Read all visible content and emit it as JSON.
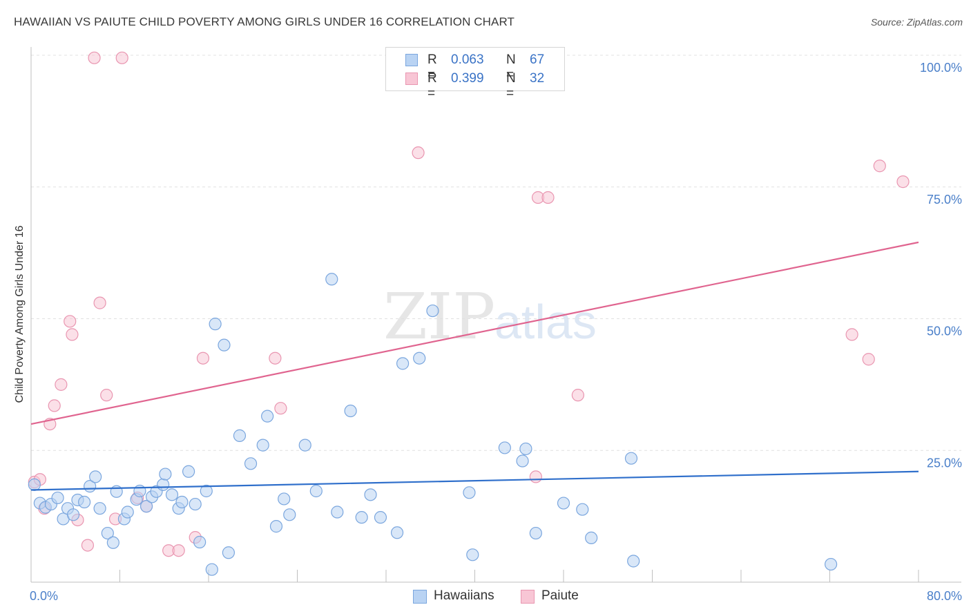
{
  "title": "HAWAIIAN VS PAIUTE CHILD POVERTY AMONG GIRLS UNDER 16 CORRELATION CHART",
  "source": "Source: ZipAtlas.com",
  "watermark": {
    "zip": "ZIP",
    "atlas": "atlas"
  },
  "colors": {
    "hawaiians_fill": "#b9d3f3",
    "hawaiians_stroke": "#7aa6de",
    "hawaiians_line": "#2f6fcb",
    "paiute_fill": "#f8c6d5",
    "paiute_stroke": "#e995b0",
    "paiute_line": "#e0648f",
    "tick_text": "#4a7fc9"
  },
  "legend": {
    "rows": [
      {
        "r_label": "R =",
        "r_value": "0.063",
        "n_label": "N =",
        "n_value": "67"
      },
      {
        "r_label": "R =",
        "r_value": "0.399",
        "n_label": "N =",
        "n_value": "32"
      }
    ]
  },
  "bottom_legend": {
    "hawaiians": "Hawaiians",
    "paiute": "Paiute"
  },
  "chart_data": {
    "type": "scatter",
    "title": "HAWAIIAN VS PAIUTE CHILD POVERTY AMONG GIRLS UNDER 16 CORRELATION CHART",
    "xlabel": "",
    "ylabel": "Child Poverty Among Girls Under 16",
    "xlim": [
      0,
      80
    ],
    "ylim": [
      0,
      100
    ],
    "x_tick_labels": {
      "left": "0.0%",
      "right": "80.0%"
    },
    "y_tick_labels": [
      {
        "value": 100,
        "label": "100.0%"
      },
      {
        "value": 75,
        "label": "75.0%"
      },
      {
        "value": 50,
        "label": "50.0%"
      },
      {
        "value": 25,
        "label": "25.0%"
      }
    ],
    "grid": true,
    "series": [
      {
        "name": "Hawaiians",
        "trend": {
          "x0": 0,
          "y0": 17.5,
          "x1": 80,
          "y1": 21.0
        },
        "points": [
          [
            0.3,
            18.5
          ],
          [
            0.8,
            15.0
          ],
          [
            1.3,
            14.2
          ],
          [
            1.8,
            14.8
          ],
          [
            2.4,
            16.0
          ],
          [
            2.9,
            12.0
          ],
          [
            3.3,
            14.0
          ],
          [
            3.8,
            12.8
          ],
          [
            4.2,
            15.6
          ],
          [
            4.8,
            15.2
          ],
          [
            5.3,
            18.2
          ],
          [
            5.8,
            20.0
          ],
          [
            6.2,
            14.0
          ],
          [
            6.9,
            9.3
          ],
          [
            7.4,
            7.5
          ],
          [
            7.7,
            17.2
          ],
          [
            8.4,
            12.0
          ],
          [
            8.7,
            13.3
          ],
          [
            9.5,
            15.7
          ],
          [
            9.8,
            17.3
          ],
          [
            10.4,
            14.4
          ],
          [
            10.9,
            16.2
          ],
          [
            11.3,
            17.2
          ],
          [
            11.9,
            18.5
          ],
          [
            12.1,
            20.5
          ],
          [
            12.7,
            16.6
          ],
          [
            13.3,
            14.0
          ],
          [
            13.6,
            15.2
          ],
          [
            14.2,
            21.0
          ],
          [
            14.8,
            14.8
          ],
          [
            15.2,
            7.6
          ],
          [
            15.8,
            17.3
          ],
          [
            16.3,
            2.4
          ],
          [
            16.6,
            49.0
          ],
          [
            17.4,
            45.0
          ],
          [
            17.8,
            5.6
          ],
          [
            18.8,
            27.8
          ],
          [
            19.8,
            22.5
          ],
          [
            20.9,
            26.0
          ],
          [
            21.3,
            31.5
          ],
          [
            22.1,
            10.6
          ],
          [
            22.8,
            15.8
          ],
          [
            23.3,
            12.8
          ],
          [
            24.7,
            26.0
          ],
          [
            25.7,
            17.3
          ],
          [
            27.1,
            57.5
          ],
          [
            27.6,
            13.3
          ],
          [
            28.8,
            32.5
          ],
          [
            29.8,
            12.3
          ],
          [
            30.6,
            16.6
          ],
          [
            31.5,
            12.3
          ],
          [
            33.0,
            9.4
          ],
          [
            33.5,
            41.5
          ],
          [
            35.0,
            42.5
          ],
          [
            36.2,
            51.5
          ],
          [
            39.5,
            17.0
          ],
          [
            39.8,
            5.2
          ],
          [
            42.7,
            25.5
          ],
          [
            44.3,
            23.0
          ],
          [
            44.6,
            25.3
          ],
          [
            45.5,
            9.3
          ],
          [
            48.0,
            15.0
          ],
          [
            49.7,
            13.8
          ],
          [
            50.5,
            8.4
          ],
          [
            54.1,
            23.5
          ],
          [
            54.3,
            4.0
          ],
          [
            72.1,
            3.4
          ]
        ]
      },
      {
        "name": "Paiute",
        "trend": {
          "x0": 0,
          "y0": 30.0,
          "x1": 80,
          "y1": 64.5
        },
        "points": [
          [
            0.3,
            19.0
          ],
          [
            0.8,
            19.5
          ],
          [
            1.2,
            14.0
          ],
          [
            1.7,
            30.0
          ],
          [
            2.1,
            33.5
          ],
          [
            2.7,
            37.5
          ],
          [
            3.5,
            49.5
          ],
          [
            3.7,
            47.0
          ],
          [
            4.2,
            11.8
          ],
          [
            5.1,
            7.0
          ],
          [
            5.7,
            99.5
          ],
          [
            6.2,
            53.0
          ],
          [
            6.8,
            35.5
          ],
          [
            7.6,
            12.0
          ],
          [
            8.2,
            99.5
          ],
          [
            9.6,
            16.0
          ],
          [
            10.4,
            14.4
          ],
          [
            12.4,
            6.0
          ],
          [
            13.3,
            6.0
          ],
          [
            14.8,
            8.5
          ],
          [
            15.5,
            42.5
          ],
          [
            22.0,
            42.5
          ],
          [
            22.5,
            33.0
          ],
          [
            34.9,
            81.5
          ],
          [
            45.5,
            20.0
          ],
          [
            45.7,
            73.0
          ],
          [
            46.6,
            73.0
          ],
          [
            49.3,
            35.5
          ],
          [
            74.0,
            47.0
          ],
          [
            75.5,
            42.3
          ],
          [
            76.5,
            79.0
          ],
          [
            78.6,
            76.0
          ]
        ]
      }
    ]
  }
}
